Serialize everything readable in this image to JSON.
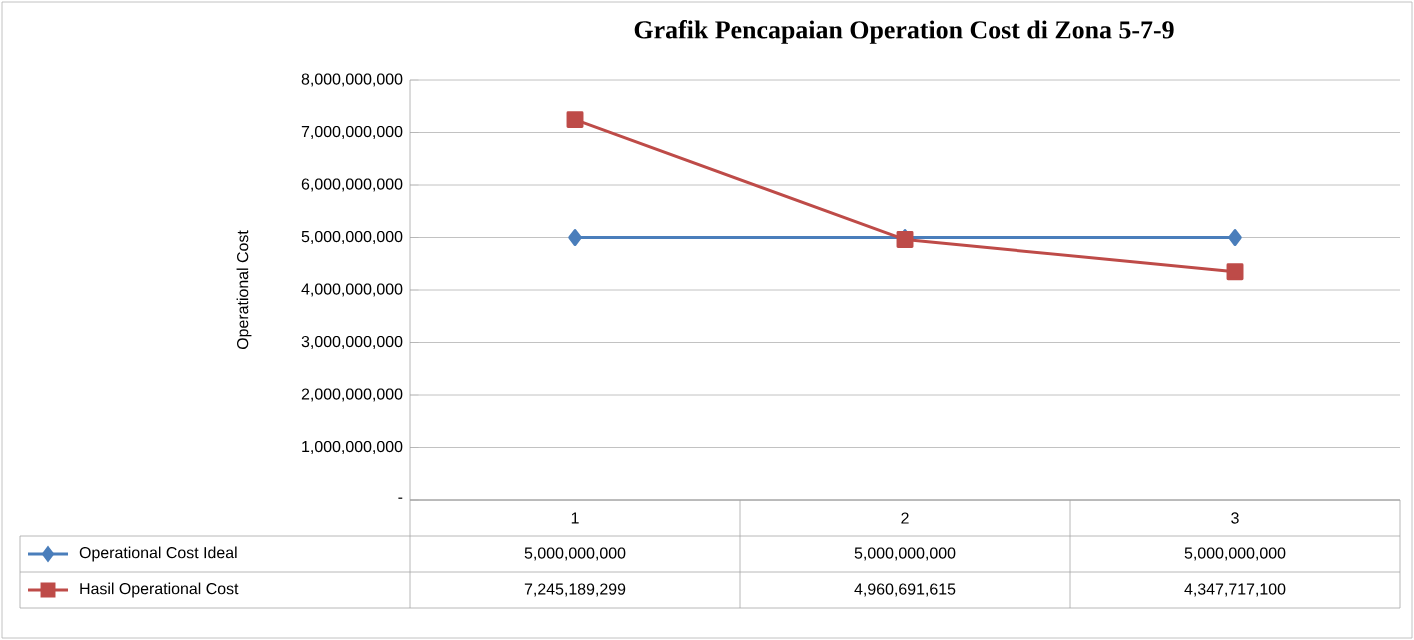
{
  "chart_data": {
    "type": "line",
    "title": "Grafik Pencapaian Operation Cost di Zona 5-7-9",
    "ylabel": "Operational Cost",
    "categories": [
      "1",
      "2",
      "3"
    ],
    "series": [
      {
        "name": "Operational Cost Ideal",
        "color": "#4a7ebb",
        "marker": "diamond",
        "values": [
          5000000000,
          5000000000,
          5000000000
        ],
        "value_labels": [
          "5,000,000,000",
          "5,000,000,000",
          "5,000,000,000"
        ]
      },
      {
        "name": "Hasil Operational Cost",
        "color": "#be4b48",
        "marker": "square",
        "values": [
          7245189299,
          4960691615,
          4347717100
        ],
        "value_labels": [
          "7,245,189,299",
          "4,960,691,615",
          "4,347,717,100"
        ]
      }
    ],
    "ylim": [
      0,
      8000000000
    ],
    "yticks": [
      {
        "value": 0,
        "label": "-"
      },
      {
        "value": 1000000000,
        "label": "1,000,000,000"
      },
      {
        "value": 2000000000,
        "label": "2,000,000,000"
      },
      {
        "value": 3000000000,
        "label": "3,000,000,000"
      },
      {
        "value": 4000000000,
        "label": "4,000,000,000"
      },
      {
        "value": 5000000000,
        "label": "5,000,000,000"
      },
      {
        "value": 6000000000,
        "label": "6,000,000,000"
      },
      {
        "value": 7000000000,
        "label": "7,000,000,000"
      },
      {
        "value": 8000000000,
        "label": "8,000,000,000"
      }
    ],
    "grid": "y",
    "legend": "bottom"
  }
}
